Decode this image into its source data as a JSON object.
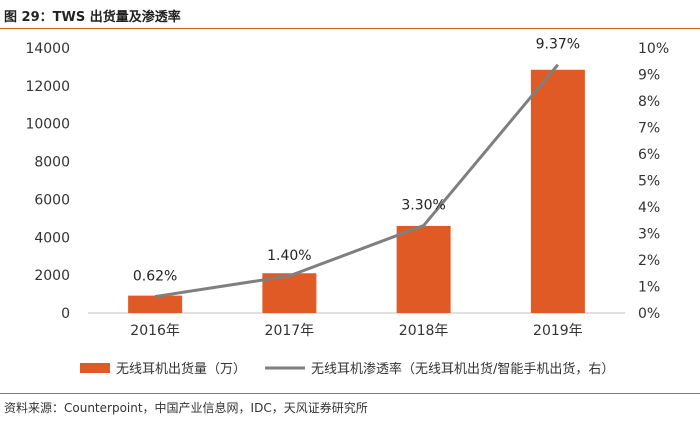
{
  "figure_title": "图 29：TWS 出货量及渗透率",
  "source_note": "资料来源：Counterpoint，中国产业信息网，IDC，天风证券研究所",
  "colors": {
    "bar": "#E05A26",
    "line": "#7F7F7F",
    "rule": "#E05A26"
  },
  "chart_data": {
    "type": "bar",
    "categories": [
      "2016年",
      "2017年",
      "2018年",
      "2019年"
    ],
    "series": [
      {
        "name": "无线耳机出货量（万）",
        "type": "bar",
        "axis": "left",
        "values": [
          918,
          2100,
          4600,
          12850
        ]
      },
      {
        "name": "无线耳机渗透率（无线耳机出货/智能手机出货，右）",
        "type": "line",
        "axis": "right",
        "values": [
          0.62,
          1.4,
          3.3,
          9.37
        ],
        "labels": [
          "0.62%",
          "1.40%",
          "3.30%",
          "9.37%"
        ]
      }
    ],
    "ylim": [
      0,
      14000
    ],
    "yticks": [
      "0",
      "2000",
      "4000",
      "6000",
      "8000",
      "10000",
      "12000",
      "14000"
    ],
    "y2lim": [
      0,
      10
    ],
    "y2ticks": [
      "0%",
      "1%",
      "2%",
      "3%",
      "4%",
      "5%",
      "6%",
      "7%",
      "8%",
      "9%",
      "10%"
    ],
    "grid": false,
    "legend_position": "bottom"
  }
}
